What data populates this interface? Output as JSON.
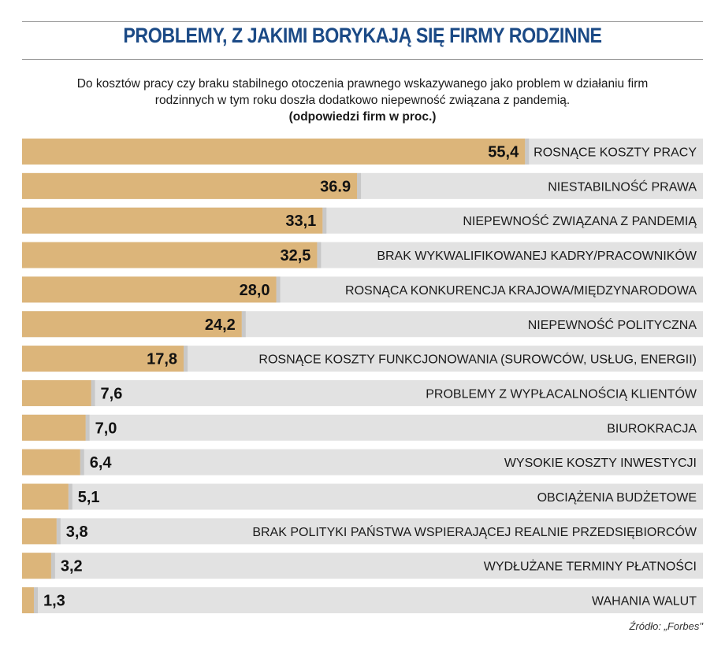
{
  "chart_data": {
    "type": "bar",
    "orientation": "horizontal",
    "title": "PROBLEMY, Z JAKIMI BORYKAJĄ SIĘ FIRMY RODZINNE",
    "subtitle_lines": [
      "Do kosztów pracy czy braku stabilnego otoczenia prawnego wskazywanego jako problem w działaniu firm",
      "rodzinnych w tym roku doszła dodatkowo niepewność związana z pandemią."
    ],
    "unit_note": "(odpowiedzi firm w proc.)",
    "categories": [
      "ROSNĄCE KOSZTY PRACY",
      "NIESTABILNOŚĆ PRAWA",
      "NIEPEWNOŚĆ ZWIĄZANA Z PANDEMIĄ",
      "BRAK WYKWALIFIKOWANEJ KADRY/PRACOWNIKÓW",
      "ROSNĄCA KONKURENCJA KRAJOWA/MIĘDZYNARODOWA",
      "NIEPEWNOŚĆ POLITYCZNA",
      "ROSNĄCE KOSZTY FUNKCJONOWANIA (SUROWCÓW, USŁUG, ENERGII)",
      "PROBLEMY Z WYPŁACALNOŚCIĄ KLIENTÓW",
      "BIUROKRACJA",
      "WYSOKIE KOSZTY INWESTYCJI",
      "OBCIĄŻENIA BUDŻETOWE",
      "BRAK POLITYKI PAŃSTWA WSPIERAJĄCEJ REALNIE PRZEDSIĘBIORCÓW",
      "WYDŁUŻANE TERMINY PŁATNOŚCI",
      "WAHANIA WALUT"
    ],
    "values": [
      55.4,
      36.9,
      33.1,
      32.5,
      28.0,
      24.2,
      17.8,
      7.6,
      7.0,
      6.4,
      5.1,
      3.8,
      3.2,
      1.3
    ],
    "value_labels": [
      "55,4",
      "36.9",
      "33,1",
      "32,5",
      "28,0",
      "24,2",
      "17,8",
      "7,6",
      "7,0",
      "6,4",
      "5,1",
      "3,8",
      "3,2",
      "1,3"
    ],
    "xlim": [
      0,
      75
    ],
    "grid": false,
    "colors": {
      "bar": "#dcb57a",
      "track": "#e2e2e2",
      "title": "#1b4a86"
    }
  },
  "source": "Źródło: „Forbes\""
}
